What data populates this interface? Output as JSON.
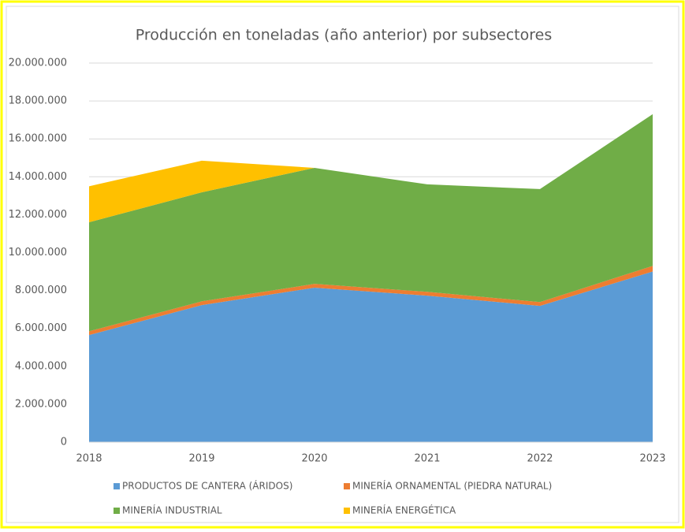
{
  "chart_data": {
    "type": "stacked_area",
    "title": "Producción en toneladas (año anterior) por subsectores",
    "x": [
      2018,
      2019,
      2020,
      2021,
      2022,
      2023
    ],
    "xlim": [
      2018,
      2023
    ],
    "xticks": [
      2018,
      2019,
      2020,
      2021,
      2022,
      2023
    ],
    "series": [
      {
        "name": "PRODUCTOS DE CANTERA (ÁRIDOS)",
        "color": "#5b9bd5",
        "values": [
          5650000,
          7230000,
          8150000,
          7730000,
          7190000,
          9000000
        ]
      },
      {
        "name": "MINERÍA ORNAMENTAL (PIEDRA NATURAL)",
        "color": "#ed7d31",
        "values": [
          200000,
          200000,
          200000,
          200000,
          200000,
          300000
        ]
      },
      {
        "name": "MINERÍA INDUSTRIAL",
        "color": "#70ad47",
        "values": [
          5750000,
          5750000,
          6120000,
          5670000,
          5960000,
          8000000
        ]
      },
      {
        "name": "MINERÍA ENERGÉTICA",
        "color": "#ffc000",
        "values": [
          1900000,
          1670000,
          0,
          0,
          0,
          0
        ]
      }
    ],
    "ylim": [
      0,
      20000000
    ],
    "yticks": [
      0,
      {
        "value": 2000000,
        "label": "2.000.000"
      },
      {
        "value": 4000000,
        "label": "4.000.000"
      },
      {
        "value": 6000000,
        "label": "6.000.000"
      },
      {
        "value": 8000000,
        "label": "8.000.000"
      },
      {
        "value": 10000000,
        "label": "10.000.000"
      },
      {
        "value": 12000000,
        "label": "12.000.000"
      },
      {
        "value": 14000000,
        "label": "14.000.000"
      },
      {
        "value": 16000000,
        "label": "16.000.000"
      },
      {
        "value": 18000000,
        "label": "18.000.000"
      },
      {
        "value": 20000000,
        "label": "20.000.000"
      }
    ],
    "grid": true
  }
}
